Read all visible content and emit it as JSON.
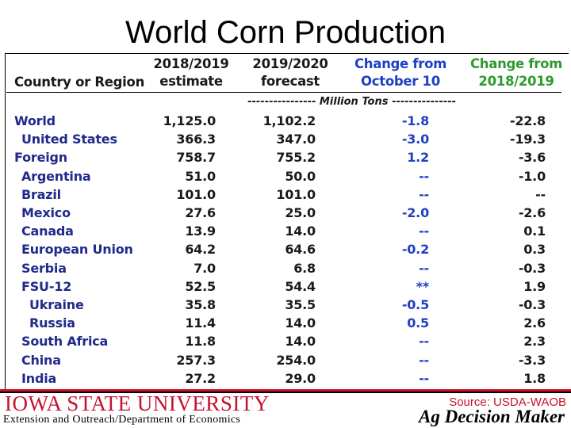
{
  "slide": {
    "title": "World Corn Production"
  },
  "table": {
    "headers": {
      "country": "Country or Region",
      "col1": [
        "2018/2019",
        "estimate"
      ],
      "col2": [
        "2019/2020",
        "forecast"
      ],
      "col3": [
        "Change from",
        "October 10"
      ],
      "col4": [
        "Change from",
        "2018/2019"
      ]
    },
    "units_prefix": "---------------- ",
    "units_label": "Million Tons",
    "units_suffix": " ---------------",
    "rows": [
      {
        "name": "World",
        "indent": 0,
        "est": "1,125.0",
        "fc": "1,102.2",
        "chg_oct": "-1.8",
        "chg_prev": "-22.8"
      },
      {
        "name": "United States",
        "indent": 1,
        "est": "366.3",
        "fc": "347.0",
        "chg_oct": "-3.0",
        "chg_prev": "-19.3"
      },
      {
        "name": "Foreign",
        "indent": 0,
        "est": "758.7",
        "fc": "755.2",
        "chg_oct": "1.2",
        "chg_prev": "-3.6"
      },
      {
        "name": "Argentina",
        "indent": 1,
        "est": "51.0",
        "fc": "50.0",
        "chg_oct": "--",
        "chg_prev": "-1.0"
      },
      {
        "name": "Brazil",
        "indent": 1,
        "est": "101.0",
        "fc": "101.0",
        "chg_oct": "--",
        "chg_prev": "--"
      },
      {
        "name": "Mexico",
        "indent": 1,
        "est": "27.6",
        "fc": "25.0",
        "chg_oct": "-2.0",
        "chg_prev": "-2.6"
      },
      {
        "name": "Canada",
        "indent": 1,
        "est": "13.9",
        "fc": "14.0",
        "chg_oct": "--",
        "chg_prev": "0.1"
      },
      {
        "name": "European Union",
        "indent": 1,
        "est": "64.2",
        "fc": "64.6",
        "chg_oct": "-0.2",
        "chg_prev": "0.3"
      },
      {
        "name": "Serbia",
        "indent": 1,
        "est": "7.0",
        "fc": "6.8",
        "chg_oct": "--",
        "chg_prev": "-0.3"
      },
      {
        "name": "FSU-12",
        "indent": 1,
        "est": "52.5",
        "fc": "54.4",
        "chg_oct": "**",
        "chg_prev": "1.9"
      },
      {
        "name": "Ukraine",
        "indent": 2,
        "est": "35.8",
        "fc": "35.5",
        "chg_oct": "-0.5",
        "chg_prev": "-0.3"
      },
      {
        "name": "Russia",
        "indent": 2,
        "est": "11.4",
        "fc": "14.0",
        "chg_oct": "0.5",
        "chg_prev": "2.6"
      },
      {
        "name": "South Africa",
        "indent": 1,
        "est": "11.8",
        "fc": "14.0",
        "chg_oct": "--",
        "chg_prev": "2.3"
      },
      {
        "name": "China",
        "indent": 1,
        "est": "257.3",
        "fc": "254.0",
        "chg_oct": "--",
        "chg_prev": "-3.3"
      },
      {
        "name": "India",
        "indent": 1,
        "est": "27.2",
        "fc": "29.0",
        "chg_oct": "--",
        "chg_prev": "1.8"
      }
    ]
  },
  "footer": {
    "university": "IOWA STATE UNIVERSITY",
    "extension": "Extension and Outreach/Department of Economics",
    "source": "Source: USDA-WAOB",
    "brand": "Ag Decision Maker"
  },
  "colors": {
    "title": "#000000",
    "country": "#1f2a8a",
    "change_oct": "#1f3fc4",
    "header_change_prev": "#2f9a2f",
    "isu_red": "#c8102e"
  }
}
